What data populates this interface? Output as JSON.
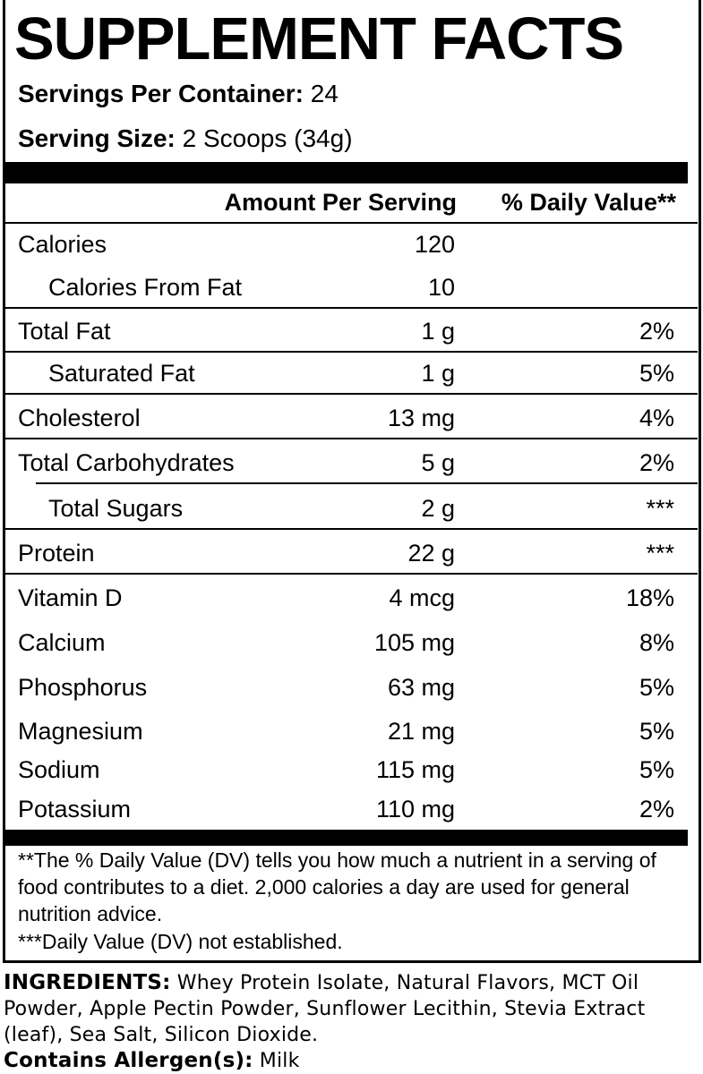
{
  "title": "SUPPLEMENT FACTS",
  "servings": {
    "label": "Servings Per Container:",
    "value": "24"
  },
  "serving_size": {
    "label": "Serving Size:",
    "value": "2 Scoops (34g)"
  },
  "header": {
    "amount": "Amount Per Serving",
    "dv": "% Daily Value**"
  },
  "rows": [
    {
      "name": "Calories",
      "amount": "120"
    },
    {
      "name": "Calories From Fat",
      "amount": "10"
    },
    {
      "name": "Total Fat",
      "amount": "1 g",
      "dv": "2%"
    },
    {
      "name": "Saturated Fat",
      "amount": "1 g",
      "dv": "5%"
    },
    {
      "name": "Cholesterol",
      "amount": "13 mg",
      "dv": "4%"
    },
    {
      "name": "Total Carbohydrates",
      "amount": "5 g",
      "dv": "2%"
    },
    {
      "name": "Total Sugars",
      "amount": "2 g",
      "dv": "***"
    },
    {
      "name": "Protein",
      "amount": "22 g",
      "dv": "***"
    },
    {
      "name": "Vitamin D",
      "amount": "4 mcg",
      "dv": "18%"
    },
    {
      "name": "Calcium",
      "amount": "105 mg",
      "dv": "8%"
    },
    {
      "name": "Phosphorus",
      "amount": "63 mg",
      "dv": "5%"
    },
    {
      "name": "Magnesium",
      "amount": "21 mg",
      "dv": "5%"
    },
    {
      "name": "Sodium",
      "amount": "115 mg",
      "dv": "5%"
    },
    {
      "name": "Potassium",
      "amount": "110 mg",
      "dv": "2%"
    }
  ],
  "footnotes": [
    "**The % Daily Value (DV) tells you how much a nutrient in a serving of food contributes to a diet. 2,000 calories a day are used for general nutrition advice.",
    "***Daily Value (DV) not established."
  ],
  "ingredients": {
    "label": "INGREDIENTS:",
    "text": "Whey Protein Isolate, Natural Flavors, MCT Oil Powder, Apple Pectin Powder, Sunflower Lecithin, Stevia Extract (leaf), Sea Salt, Silicon Dioxide."
  },
  "allergens": {
    "label": "Contains Allergen(s):",
    "text": "Milk"
  }
}
